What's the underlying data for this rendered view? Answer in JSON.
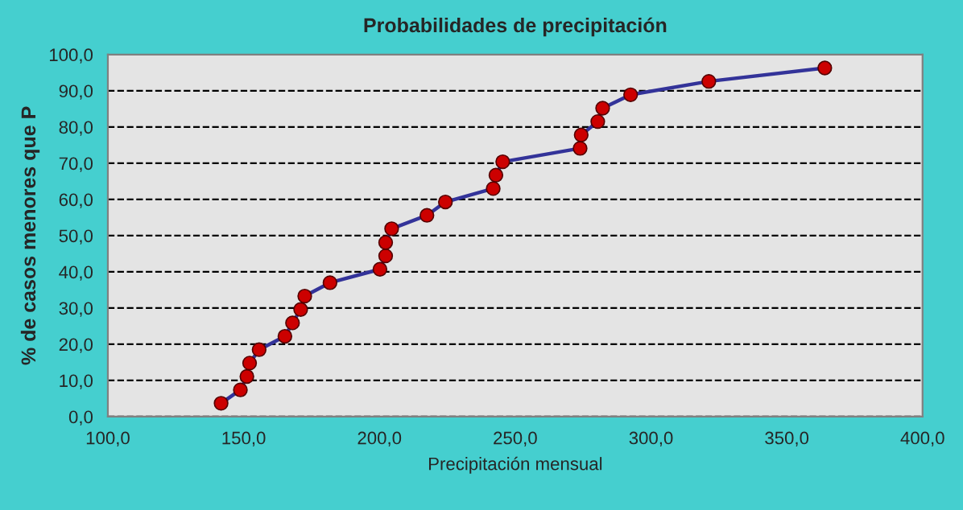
{
  "chart_data": {
    "type": "line",
    "title": "Probabilidades de precipitación",
    "xlabel": "Precipitación mensual",
    "ylabel": "% de casos menores que P",
    "series": [
      {
        "color": "#333399",
        "x": [
          141.7,
          148.8,
          151.2,
          152.2,
          155.7,
          165.2,
          168.0,
          171.0,
          172.5,
          181.8,
          200.2,
          202.3,
          202.3,
          204.5,
          217.5,
          224.3,
          241.9,
          242.9,
          245.4,
          273.9,
          274.3,
          280.4,
          282.2,
          292.5,
          321.3,
          364.0
        ],
        "values": [
          3.7,
          7.4,
          11.1,
          14.8,
          18.5,
          22.2,
          25.9,
          29.6,
          33.3,
          37.0,
          40.7,
          44.4,
          48.1,
          51.9,
          55.6,
          59.3,
          63.0,
          66.7,
          70.4,
          74.1,
          77.8,
          81.5,
          85.2,
          88.9,
          92.6,
          96.3
        ]
      }
    ],
    "marker": "circle",
    "line_style": "solid",
    "grid": "y",
    "legend": false,
    "xlim": [
      100,
      400
    ],
    "xticks": [
      {
        "value": 100,
        "label": "100,0"
      },
      {
        "value": 150,
        "label": "150,0"
      },
      {
        "value": 200,
        "label": "200,0"
      },
      {
        "value": 250,
        "label": "250,0"
      },
      {
        "value": 300,
        "label": "300,0"
      },
      {
        "value": 350,
        "label": "350,0"
      },
      {
        "value": 400,
        "label": "400,0"
      }
    ],
    "ylim": [
      0,
      100
    ],
    "yticks": [
      {
        "value": 0,
        "label": "0,0"
      },
      {
        "value": 10,
        "label": "10,0"
      },
      {
        "value": 20,
        "label": "20,0"
      },
      {
        "value": 30,
        "label": "30,0"
      },
      {
        "value": 40,
        "label": "40,0"
      },
      {
        "value": 50,
        "label": "50,0"
      },
      {
        "value": 60,
        "label": "60,0"
      },
      {
        "value": 70,
        "label": "70,0"
      },
      {
        "value": 80,
        "label": "80,0"
      },
      {
        "value": 90,
        "label": "90,0"
      },
      {
        "value": 100,
        "label": "100,0"
      }
    ]
  }
}
